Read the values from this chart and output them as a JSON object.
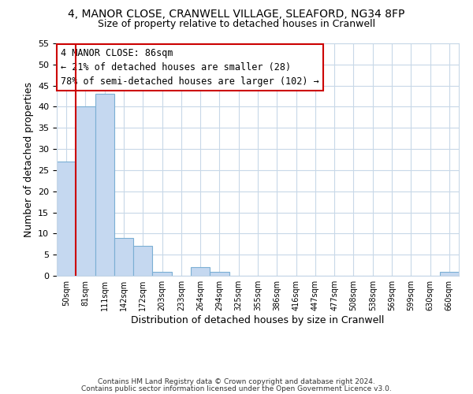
{
  "title": "4, MANOR CLOSE, CRANWELL VILLAGE, SLEAFORD, NG34 8FP",
  "subtitle": "Size of property relative to detached houses in Cranwell",
  "xlabel": "Distribution of detached houses by size in Cranwell",
  "ylabel": "Number of detached properties",
  "bar_labels": [
    "50sqm",
    "81sqm",
    "111sqm",
    "142sqm",
    "172sqm",
    "203sqm",
    "233sqm",
    "264sqm",
    "294sqm",
    "325sqm",
    "355sqm",
    "386sqm",
    "416sqm",
    "447sqm",
    "477sqm",
    "508sqm",
    "538sqm",
    "569sqm",
    "599sqm",
    "630sqm",
    "660sqm"
  ],
  "bar_values": [
    27,
    40,
    43,
    9,
    7,
    1,
    0,
    2,
    1,
    0,
    0,
    0,
    0,
    0,
    0,
    0,
    0,
    0,
    0,
    0,
    1
  ],
  "bar_color": "#c5d8f0",
  "bar_edge_color": "#7bafd4",
  "ylim": [
    0,
    55
  ],
  "yticks": [
    0,
    5,
    10,
    15,
    20,
    25,
    30,
    35,
    40,
    45,
    50,
    55
  ],
  "property_line_x": 1,
  "property_line_color": "#cc0000",
  "annotation_title": "4 MANOR CLOSE: 86sqm",
  "annotation_line1": "← 21% of detached houses are smaller (28)",
  "annotation_line2": "78% of semi-detached houses are larger (102) →",
  "annotation_box_color": "#ffffff",
  "annotation_box_edge": "#cc0000",
  "footer1": "Contains HM Land Registry data © Crown copyright and database right 2024.",
  "footer2": "Contains public sector information licensed under the Open Government Licence v3.0.",
  "bg_color": "#ffffff",
  "grid_color": "#c8d8e8"
}
